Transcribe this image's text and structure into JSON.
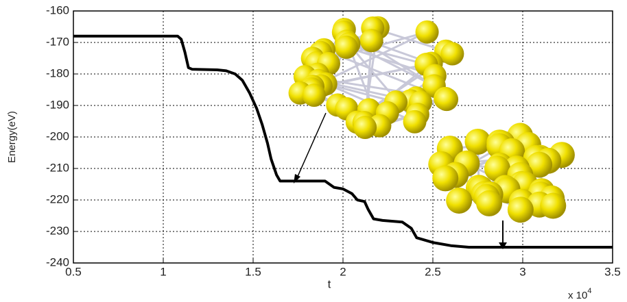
{
  "chart_data": {
    "type": "line",
    "y_label": "Energy(eV)",
    "x_label": "t",
    "x_multiplier": "x 10",
    "x_exponent": "4",
    "x": [
      0.5,
      1.08,
      1.1,
      1.12,
      1.14,
      1.16,
      1.3,
      1.35,
      1.4,
      1.44,
      1.48,
      1.52,
      1.55,
      1.58,
      1.6,
      1.63,
      1.65,
      1.9,
      1.95,
      2.0,
      2.05,
      2.08,
      2.12,
      2.14,
      2.17,
      2.22,
      2.33,
      2.38,
      2.41,
      2.5,
      2.6,
      2.7,
      3.5
    ],
    "series": [
      {
        "color": "#000000",
        "values": [
          -168,
          -168,
          -169,
          -173,
          -178,
          -178.5,
          -178.7,
          -179,
          -180,
          -182,
          -186,
          -191,
          -196,
          -202,
          -207,
          -212,
          -214,
          -214,
          -216,
          -216.5,
          -218,
          -220,
          -220.5,
          -223,
          -226,
          -226.5,
          -227,
          -229,
          -232,
          -233.5,
          -234.5,
          -235,
          -235
        ]
      }
    ],
    "xlim": [
      0.5,
      3.5
    ],
    "xticks": [
      0.5,
      1,
      1.5,
      2,
      2.5,
      3,
      3.5
    ],
    "ylim": [
      -240,
      -160
    ],
    "yticks": [
      -240,
      -230,
      -220,
      -210,
      -200,
      -190,
      -180,
      -170,
      -160
    ],
    "grid": true
  }
}
